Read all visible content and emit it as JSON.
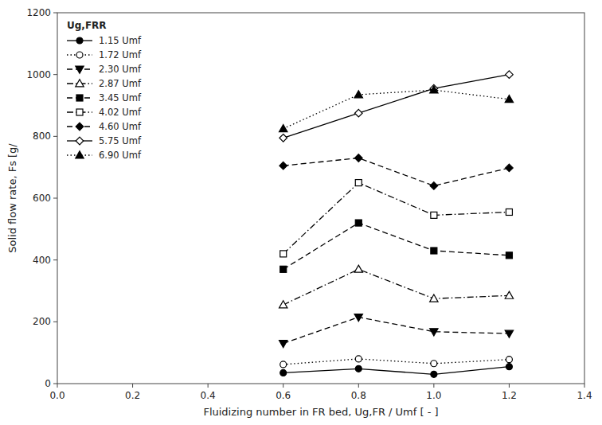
{
  "chart_data": {
    "type": "line",
    "xlabel": "Fluidizing number in FR bed, Ug,FR / Umf [ - ]",
    "ylabel": "Solid flow rate, Fs [g/",
    "legend_title": "Ug,FRR",
    "legend": "upper left",
    "grid": false,
    "color": "black",
    "x": [
      0.6,
      0.8,
      1.0,
      1.2
    ],
    "xlim": [
      0.0,
      1.4
    ],
    "xticks": [
      {
        "value": 0.0,
        "label": "0.0"
      },
      0.2,
      0.4,
      0.6,
      0.8,
      {
        "value": 1.0,
        "label": "1.0"
      },
      1.2,
      1.4
    ],
    "ylim": [
      0,
      1200
    ],
    "yticks": [
      0,
      200,
      400,
      600,
      800,
      1000,
      1200
    ],
    "series": [
      {
        "name": "1.15 Umf",
        "values": [
          35,
          48,
          30,
          55
        ],
        "marker": "circle-filled",
        "line_style": "solid"
      },
      {
        "name": "1.72 Umf",
        "values": [
          62,
          80,
          65,
          78
        ],
        "marker": "circle-open",
        "line_style": "dotted"
      },
      {
        "name": "2.30 Umf",
        "values": [
          130,
          215,
          168,
          162
        ],
        "marker": "triangle-down-filled",
        "line_style": "dashed"
      },
      {
        "name": "2.87 Umf",
        "values": [
          255,
          370,
          275,
          285
        ],
        "marker": "triangle-up-open",
        "line_style": "dashdot"
      },
      {
        "name": "3.45 Umf",
        "values": [
          370,
          520,
          430,
          415
        ],
        "marker": "square-filled",
        "line_style": "dashed"
      },
      {
        "name": "4.02 Umf",
        "values": [
          420,
          650,
          545,
          555
        ],
        "marker": "square-open",
        "line_style": "dashdot"
      },
      {
        "name": "4.60 Umf",
        "values": [
          705,
          730,
          640,
          698
        ],
        "marker": "diamond-filled",
        "line_style": "dashed"
      },
      {
        "name": "5.75 Umf",
        "values": [
          795,
          875,
          955,
          1000
        ],
        "marker": "diamond-open",
        "line_style": "solid"
      },
      {
        "name": "6.90 Umf",
        "values": [
          825,
          935,
          950,
          920
        ],
        "marker": "triangle-up-filled",
        "line_style": "dotted"
      }
    ]
  }
}
